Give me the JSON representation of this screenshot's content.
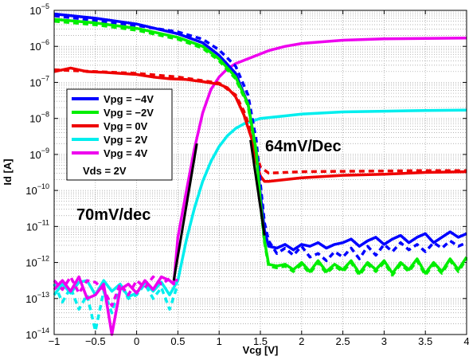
{
  "chart_data": {
    "type": "line",
    "title": "",
    "xlabel": "Vcg [V]",
    "ylabel": "Id [A]",
    "xlim": [
      -1,
      4
    ],
    "ylim_exp": [
      -14,
      -5
    ],
    "y_scale": "log",
    "grid": true,
    "legend_position": "upper-left",
    "x_ticks": [
      "−1",
      "−0.5",
      "0",
      "0.5",
      "1",
      "1.5",
      "2",
      "2.5",
      "3",
      "3.5",
      "4"
    ],
    "y_tick_base": "10",
    "y_tick_exponents": [
      "−5",
      "−6",
      "−7",
      "−8",
      "−9",
      "−10",
      "−11",
      "−12",
      "−13",
      "−14"
    ],
    "legend_extra": "Vds = 2V",
    "annotations": {
      "right_slope": "64mV/Dec",
      "left_slope": "70mV/dec"
    },
    "series": [
      {
        "name": "Vpg = −4V",
        "color": "#0000ff",
        "solid": {
          "x": [
            -1,
            -0.5,
            0,
            0.5,
            0.8,
            1.0,
            1.2,
            1.35,
            1.45,
            1.5,
            1.55,
            1.6,
            1.7,
            1.8,
            1.9,
            2.0,
            2.1,
            2.2,
            2.3,
            2.4,
            2.5,
            2.6,
            2.7,
            2.8,
            2.9,
            3.0,
            3.1,
            3.2,
            3.3,
            3.4,
            3.5,
            3.6,
            3.7,
            3.8,
            3.9,
            4.0
          ],
          "log_y": [
            -5.1,
            -5.22,
            -5.38,
            -5.65,
            -5.9,
            -6.25,
            -6.75,
            -7.6,
            -8.9,
            -10.1,
            -11.1,
            -11.55,
            -11.6,
            -11.5,
            -11.65,
            -11.5,
            -11.55,
            -11.45,
            -11.6,
            -11.5,
            -11.45,
            -11.35,
            -11.55,
            -11.4,
            -11.3,
            -11.5,
            -11.35,
            -11.25,
            -11.45,
            -11.3,
            -11.2,
            -11.45,
            -11.3,
            -11.15,
            -11.3,
            -11.2
          ]
        },
        "dashed": {
          "x": [
            -1,
            -0.5,
            0,
            0.5,
            0.8,
            1.0,
            1.2,
            1.35,
            1.45,
            1.5,
            1.55,
            1.6,
            1.7,
            1.8,
            1.9,
            2.0,
            2.1,
            2.2,
            2.3,
            2.4,
            2.5,
            2.6,
            2.7,
            2.8,
            2.9,
            3.0,
            3.1,
            3.2,
            3.3,
            3.4,
            3.5,
            3.6,
            3.7,
            3.8,
            3.9,
            4.0
          ],
          "log_y": [
            -5.15,
            -5.28,
            -5.42,
            -5.6,
            -5.8,
            -6.1,
            -6.55,
            -7.35,
            -8.6,
            -9.8,
            -10.9,
            -11.4,
            -11.75,
            -11.6,
            -11.8,
            -11.55,
            -11.85,
            -11.75,
            -11.95,
            -11.7,
            -11.85,
            -11.6,
            -11.9,
            -11.55,
            -11.8,
            -11.5,
            -11.7,
            -11.45,
            -11.65,
            -11.5,
            -11.7,
            -11.45,
            -11.6,
            -11.4,
            -11.55,
            -11.45
          ]
        }
      },
      {
        "name": "Vpg = −2V",
        "color": "#00ee00",
        "solid": {
          "x": [
            -1,
            -0.5,
            0,
            0.5,
            0.8,
            1.0,
            1.2,
            1.35,
            1.45,
            1.5,
            1.55,
            1.6,
            1.7,
            1.8,
            1.9,
            2.0,
            2.1,
            2.2,
            2.3,
            2.4,
            2.5,
            2.6,
            2.7,
            2.8,
            2.9,
            3.0,
            3.1,
            3.2,
            3.3,
            3.4,
            3.5,
            3.6,
            3.7,
            3.8,
            3.9,
            4.0
          ],
          "log_y": [
            -5.25,
            -5.35,
            -5.5,
            -5.75,
            -6.0,
            -6.35,
            -6.85,
            -7.6,
            -8.9,
            -10.3,
            -11.4,
            -12.05,
            -12.1,
            -12.05,
            -12.2,
            -12.0,
            -12.25,
            -11.95,
            -12.25,
            -12.05,
            -12.2,
            -11.95,
            -12.3,
            -12.0,
            -12.2,
            -11.95,
            -12.3,
            -12.0,
            -12.2,
            -11.9,
            -12.3,
            -12.0,
            -12.25,
            -11.9,
            -12.2,
            -11.85
          ]
        },
        "dashed": {
          "x": [
            -1,
            -0.5,
            0,
            0.5,
            0.8,
            1.0,
            1.2,
            1.35,
            1.45,
            1.5,
            1.55,
            1.6,
            1.7,
            1.8,
            1.9,
            2.0,
            2.1,
            2.2,
            2.3,
            2.4,
            2.5,
            2.6,
            2.7,
            2.8,
            2.9,
            3.0,
            3.1,
            3.2,
            3.3,
            3.4,
            3.5,
            3.6,
            3.7,
            3.8,
            3.9,
            4.0
          ],
          "log_y": [
            -5.3,
            -5.4,
            -5.55,
            -5.8,
            -6.05,
            -6.4,
            -6.9,
            -7.65,
            -8.95,
            -10.35,
            -11.45,
            -12.1,
            -12.15,
            -12.1,
            -12.25,
            -12.05,
            -12.3,
            -12.0,
            -12.3,
            -12.1,
            -12.25,
            -12.0,
            -12.35,
            -12.05,
            -12.25,
            -12.0,
            -12.35,
            -12.05,
            -12.25,
            -11.95,
            -12.35,
            -12.05,
            -12.3,
            -11.95,
            -12.25,
            -11.9
          ]
        }
      },
      {
        "name": "Vpg = 0V",
        "color": "#ee0000",
        "solid": {
          "x": [
            -1,
            -0.8,
            -0.6,
            -0.4,
            -0.2,
            0,
            0.2,
            0.4,
            0.6,
            0.8,
            1.0,
            1.1,
            1.2,
            1.3,
            1.4,
            1.45,
            1.5,
            1.55,
            1.6,
            1.8,
            2.0,
            2.5,
            3.0,
            3.5,
            4.0
          ],
          "log_y": [
            -6.7,
            -6.6,
            -6.7,
            -6.72,
            -6.75,
            -6.78,
            -6.85,
            -6.9,
            -6.92,
            -6.98,
            -7.05,
            -7.15,
            -7.4,
            -7.9,
            -8.6,
            -9.2,
            -9.6,
            -9.75,
            -9.75,
            -9.7,
            -9.65,
            -9.58,
            -9.55,
            -9.5,
            -9.48
          ]
        },
        "dashed": {
          "x": [
            -1,
            -0.5,
            0,
            0.5,
            1.0,
            1.2,
            1.3,
            1.4,
            1.45,
            1.5,
            1.6,
            1.8,
            2.0,
            2.5,
            3.0,
            3.5,
            4.0
          ],
          "log_y": [
            -6.65,
            -6.7,
            -6.75,
            -6.85,
            -7.02,
            -7.35,
            -7.8,
            -8.45,
            -8.95,
            -9.35,
            -9.52,
            -9.5,
            -9.48,
            -9.47,
            -9.46,
            -9.45,
            -9.45
          ]
        }
      },
      {
        "name": "Vpg = 2V",
        "color": "#00eeee",
        "solid": {
          "x": [
            -1,
            -0.9,
            -0.8,
            -0.7,
            -0.6,
            -0.5,
            -0.4,
            -0.3,
            -0.2,
            -0.1,
            0,
            0.1,
            0.2,
            0.3,
            0.4,
            0.5,
            0.6,
            0.7,
            0.8,
            0.9,
            1.0,
            1.1,
            1.2,
            1.3,
            1.5,
            1.8,
            2.0,
            2.5,
            3.0,
            3.5,
            4.0
          ],
          "log_y": [
            -12.9,
            -12.6,
            -12.85,
            -12.55,
            -12.5,
            -12.9,
            -12.5,
            -12.8,
            -12.6,
            -12.95,
            -12.85,
            -12.55,
            -12.8,
            -12.55,
            -12.9,
            -12.5,
            -11.4,
            -10.5,
            -9.75,
            -9.2,
            -8.78,
            -8.48,
            -8.28,
            -8.15,
            -8.0,
            -7.93,
            -7.88,
            -7.82,
            -7.8,
            -7.78,
            -7.77
          ]
        },
        "dashed": {
          "x": [
            -1,
            -0.9,
            -0.8,
            -0.7,
            -0.6,
            -0.5,
            -0.4,
            -0.3,
            -0.2,
            -0.1,
            0,
            0.1,
            0.2,
            0.3,
            0.4,
            0.5
          ],
          "log_y": [
            -12.6,
            -13.1,
            -12.7,
            -13.3,
            -12.9,
            -13.9,
            -12.8,
            -13.4,
            -12.6,
            -13.0,
            -12.9,
            -12.6,
            -13.0,
            -12.7,
            -13.3,
            -12.6
          ]
        }
      },
      {
        "name": "Vpg = 4V",
        "color": "#ee00ee",
        "solid": {
          "x": [
            -1,
            -0.9,
            -0.8,
            -0.7,
            -0.6,
            -0.5,
            -0.4,
            -0.3,
            -0.2,
            -0.1,
            0,
            0.1,
            0.2,
            0.3,
            0.4,
            0.45,
            0.5,
            0.6,
            0.7,
            0.8,
            0.9,
            1.0,
            1.1,
            1.2,
            1.4,
            1.6,
            1.8,
            2.0,
            2.5,
            3.0,
            3.5,
            4.0
          ],
          "log_y": [
            -12.75,
            -12.5,
            -12.8,
            -12.4,
            -13.0,
            -12.9,
            -12.6,
            -14.0,
            -12.75,
            -12.6,
            -12.85,
            -12.5,
            -12.75,
            -12.4,
            -12.5,
            -12.6,
            -11.3,
            -10.05,
            -8.85,
            -7.85,
            -7.2,
            -6.85,
            -6.62,
            -6.48,
            -6.3,
            -6.12,
            -6.0,
            -5.92,
            -5.83,
            -5.79,
            -5.78,
            -5.77
          ]
        },
        "dashed": {
          "x": [
            -1,
            -0.9,
            -0.8,
            -0.7,
            -0.6,
            -0.5,
            -0.4,
            -0.3,
            -0.2,
            -0.1,
            0,
            0.1,
            0.2,
            0.3,
            0.4,
            0.5
          ],
          "log_y": [
            -12.5,
            -12.75,
            -12.4,
            -12.85,
            -12.5,
            -12.55,
            -12.75,
            -13.2,
            -12.6,
            -12.9,
            -12.5,
            -12.7,
            -12.4,
            -12.6,
            -12.45,
            -12.5
          ]
        }
      }
    ],
    "fit_lines": [
      {
        "x": [
          0.45,
          0.73
        ],
        "log_y": [
          -12.5,
          -8.7
        ],
        "color": "#000000"
      },
      {
        "x": [
          1.38,
          1.55
        ],
        "log_y": [
          -8.6,
          -11.25
        ],
        "color": "#000000"
      }
    ]
  }
}
